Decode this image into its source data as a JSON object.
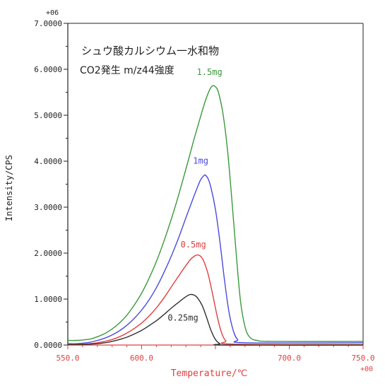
{
  "chart_data": {
    "type": "line",
    "title": "シュウ酸カルシウム一水和物",
    "subtitle": "CO2発生 m/z44強度",
    "xlabel": "Temperature/℃",
    "ylabel": "Intensity/CPS",
    "x_exponent_label": "+00",
    "y_exponent_label": "+06",
    "xlim": [
      550,
      750
    ],
    "ylim": [
      0,
      7
    ],
    "x_ticks": [
      550,
      600,
      700,
      750
    ],
    "x_tick_labels": [
      "550.0",
      "600.0",
      "700.0",
      "750.0"
    ],
    "y_ticks": [
      0,
      1,
      2,
      3,
      4,
      5,
      6,
      7
    ],
    "y_tick_labels": [
      "0.0000",
      "1.0000",
      "2.0000",
      "3.0000",
      "4.0000",
      "5.0000",
      "6.0000",
      "7.0000"
    ],
    "grid": false,
    "legend": "none",
    "series": [
      {
        "name": "1.5mg",
        "color": "#3a9a3a",
        "points": [
          [
            550,
            0.1
          ],
          [
            555,
            0.1
          ],
          [
            560,
            0.11
          ],
          [
            565,
            0.13
          ],
          [
            570,
            0.18
          ],
          [
            575,
            0.25
          ],
          [
            580,
            0.35
          ],
          [
            585,
            0.48
          ],
          [
            590,
            0.65
          ],
          [
            595,
            0.87
          ],
          [
            600,
            1.13
          ],
          [
            605,
            1.45
          ],
          [
            610,
            1.82
          ],
          [
            615,
            2.25
          ],
          [
            620,
            2.73
          ],
          [
            625,
            3.26
          ],
          [
            630,
            3.83
          ],
          [
            635,
            4.42
          ],
          [
            640,
            4.98
          ],
          [
            643,
            5.3
          ],
          [
            646,
            5.55
          ],
          [
            648,
            5.64
          ],
          [
            650,
            5.62
          ],
          [
            652,
            5.5
          ],
          [
            655,
            5.05
          ],
          [
            658,
            4.3
          ],
          [
            661,
            3.2
          ],
          [
            664,
            2.0
          ],
          [
            667,
            0.95
          ],
          [
            670,
            0.4
          ],
          [
            673,
            0.18
          ],
          [
            678,
            0.1
          ],
          [
            690,
            0.08
          ],
          [
            750,
            0.08
          ]
        ]
      },
      {
        "name": "1mg",
        "color": "#4a4ae0",
        "points": [
          [
            550,
            0.03
          ],
          [
            555,
            0.03
          ],
          [
            560,
            0.04
          ],
          [
            565,
            0.06
          ],
          [
            570,
            0.1
          ],
          [
            575,
            0.15
          ],
          [
            580,
            0.22
          ],
          [
            585,
            0.31
          ],
          [
            590,
            0.43
          ],
          [
            595,
            0.58
          ],
          [
            600,
            0.76
          ],
          [
            605,
            0.98
          ],
          [
            610,
            1.25
          ],
          [
            615,
            1.57
          ],
          [
            620,
            1.93
          ],
          [
            625,
            2.33
          ],
          [
            630,
            2.77
          ],
          [
            635,
            3.2
          ],
          [
            638,
            3.45
          ],
          [
            640,
            3.6
          ],
          [
            642,
            3.68
          ],
          [
            643,
            3.7
          ],
          [
            645,
            3.62
          ],
          [
            647,
            3.42
          ],
          [
            650,
            2.95
          ],
          [
            653,
            2.25
          ],
          [
            656,
            1.45
          ],
          [
            659,
            0.75
          ],
          [
            662,
            0.32
          ],
          [
            665,
            0.12
          ],
          [
            670,
            0.05
          ],
          [
            750,
            0.05
          ]
        ]
      },
      {
        "name": "0.5mg",
        "color": "#e04040",
        "points": [
          [
            550,
            0.02
          ],
          [
            560,
            0.02
          ],
          [
            565,
            0.03
          ],
          [
            570,
            0.05
          ],
          [
            575,
            0.08
          ],
          [
            580,
            0.12
          ],
          [
            585,
            0.18
          ],
          [
            590,
            0.26
          ],
          [
            595,
            0.36
          ],
          [
            600,
            0.48
          ],
          [
            605,
            0.63
          ],
          [
            610,
            0.81
          ],
          [
            615,
            1.02
          ],
          [
            620,
            1.26
          ],
          [
            625,
            1.5
          ],
          [
            630,
            1.73
          ],
          [
            633,
            1.86
          ],
          [
            636,
            1.94
          ],
          [
            638,
            1.96
          ],
          [
            640,
            1.93
          ],
          [
            642,
            1.83
          ],
          [
            645,
            1.55
          ],
          [
            648,
            1.12
          ],
          [
            651,
            0.65
          ],
          [
            654,
            0.28
          ],
          [
            657,
            0.09
          ],
          [
            662,
            0.02
          ],
          [
            750,
            0.01
          ]
        ]
      },
      {
        "name": "0.25mg",
        "color": "#303030",
        "points": [
          [
            550,
            0.01
          ],
          [
            560,
            0.01
          ],
          [
            565,
            0.02
          ],
          [
            570,
            0.03
          ],
          [
            575,
            0.05
          ],
          [
            580,
            0.08
          ],
          [
            585,
            0.12
          ],
          [
            590,
            0.17
          ],
          [
            595,
            0.24
          ],
          [
            600,
            0.32
          ],
          [
            605,
            0.42
          ],
          [
            610,
            0.53
          ],
          [
            615,
            0.66
          ],
          [
            620,
            0.8
          ],
          [
            625,
            0.93
          ],
          [
            629,
            1.03
          ],
          [
            632,
            1.09
          ],
          [
            634,
            1.1
          ],
          [
            636,
            1.08
          ],
          [
            638,
            1.02
          ],
          [
            641,
            0.86
          ],
          [
            644,
            0.6
          ],
          [
            647,
            0.32
          ],
          [
            650,
            0.12
          ],
          [
            653,
            0.03
          ],
          [
            657,
            0.0
          ],
          [
            750,
            0.0
          ]
        ]
      }
    ],
    "series_label_anchors": [
      [
        646,
        5.88
      ],
      [
        640,
        3.95
      ],
      [
        635,
        2.12
      ],
      [
        628,
        0.53
      ]
    ]
  }
}
